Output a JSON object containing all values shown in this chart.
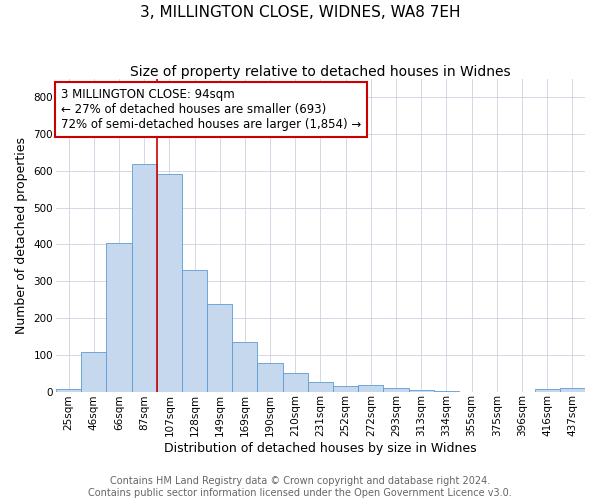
{
  "title": "3, MILLINGTON CLOSE, WIDNES, WA8 7EH",
  "subtitle": "Size of property relative to detached houses in Widnes",
  "xlabel": "Distribution of detached houses by size in Widnes",
  "ylabel": "Number of detached properties",
  "categories": [
    "25sqm",
    "46sqm",
    "66sqm",
    "87sqm",
    "107sqm",
    "128sqm",
    "149sqm",
    "169sqm",
    "190sqm",
    "210sqm",
    "231sqm",
    "252sqm",
    "272sqm",
    "293sqm",
    "313sqm",
    "334sqm",
    "355sqm",
    "375sqm",
    "396sqm",
    "416sqm",
    "437sqm"
  ],
  "values": [
    8,
    107,
    403,
    618,
    591,
    330,
    237,
    135,
    78,
    51,
    25,
    15,
    18,
    9,
    4,
    2,
    0,
    0,
    0,
    8,
    10
  ],
  "bar_color": "#c5d8ed",
  "bar_edge_color": "#5b9bd5",
  "subject_line_index": 4,
  "subject_line_color": "#cc0000",
  "annotation_text": "3 MILLINGTON CLOSE: 94sqm\n← 27% of detached houses are smaller (693)\n72% of semi-detached houses are larger (1,854) →",
  "annotation_box_color": "#ffffff",
  "annotation_box_edge_color": "#cc0000",
  "footer_line1": "Contains HM Land Registry data © Crown copyright and database right 2024.",
  "footer_line2": "Contains public sector information licensed under the Open Government Licence v3.0.",
  "ylim": [
    0,
    850
  ],
  "yticks": [
    0,
    100,
    200,
    300,
    400,
    500,
    600,
    700,
    800
  ],
  "title_fontsize": 11,
  "subtitle_fontsize": 10,
  "axis_label_fontsize": 9,
  "tick_fontsize": 7.5,
  "footer_fontsize": 7,
  "annotation_fontsize": 8.5,
  "background_color": "#ffffff",
  "grid_color": "#d0d0e0"
}
